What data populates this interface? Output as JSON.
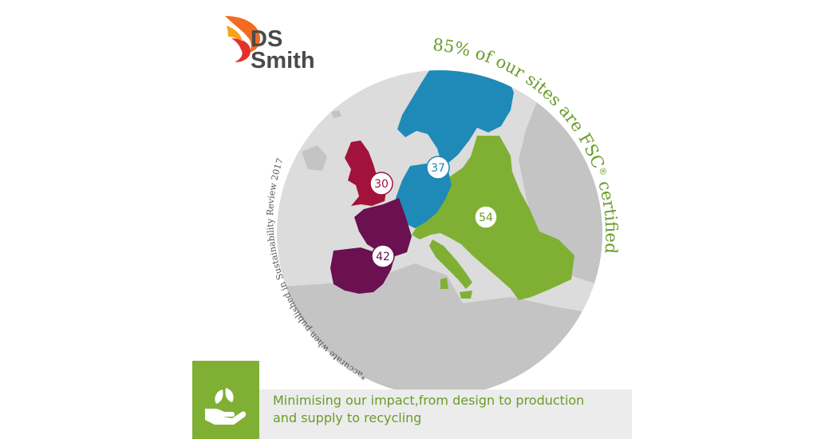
{
  "brand": {
    "line1": "DS",
    "line2": "Smith",
    "colors": {
      "orange": "#f26b21",
      "red": "#e4312b",
      "yellow": "#f7a21b"
    }
  },
  "headline": {
    "prefix": "85% of our sites are FSC",
    "registered": "®",
    "suffix": "certified*"
  },
  "footnote": "*accurate when published in Sustainability Review 2017",
  "regions": [
    {
      "id": "uk",
      "label": "30",
      "color": "#a3123a"
    },
    {
      "id": "north-central",
      "label": "37",
      "color": "#1f8ab8"
    },
    {
      "id": "france-iberia",
      "label": "42",
      "color": "#6b1050"
    },
    {
      "id": "east-south",
      "label": "54",
      "color": "#7fb034"
    }
  ],
  "footer": {
    "line1": "Minimising our impact,from design to production",
    "line2": "and supply to recycling",
    "icon": "hands-leaf-icon"
  },
  "colors": {
    "map_circle": "#dcdcdc",
    "land_neutral": "#c4c4c4",
    "headline_green": "#6a9c2a",
    "footnote_grey": "#555555"
  }
}
